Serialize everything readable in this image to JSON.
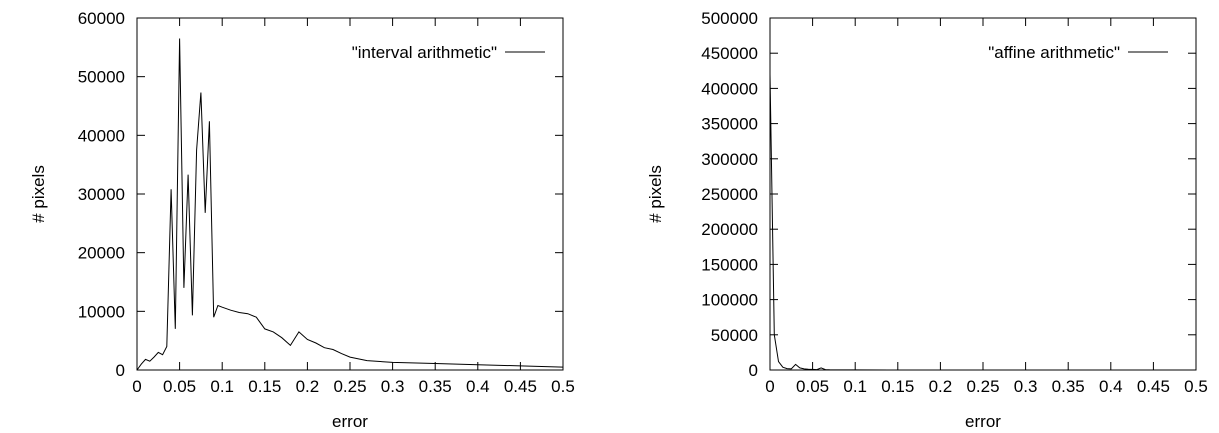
{
  "chart_data": [
    {
      "type": "line",
      "xlabel": "error",
      "ylabel": "# pixels",
      "xlim": [
        0,
        0.5
      ],
      "ylim": [
        0,
        60000
      ],
      "x_ticks": [
        "0",
        "0.05",
        "0.1",
        "0.15",
        "0.2",
        "0.25",
        "0.3",
        "0.35",
        "0.4",
        "0.45",
        "0.5"
      ],
      "y_ticks": [
        "0",
        "10000",
        "20000",
        "30000",
        "40000",
        "50000",
        "60000"
      ],
      "grid": false,
      "legend_position": "top-right",
      "series": [
        {
          "name": "\"interval arithmetic\"",
          "x": [
            0,
            0.005,
            0.01,
            0.015,
            0.02,
            0.025,
            0.03,
            0.035,
            0.04,
            0.045,
            0.05,
            0.055,
            0.06,
            0.065,
            0.07,
            0.075,
            0.08,
            0.085,
            0.09,
            0.095,
            0.1,
            0.11,
            0.12,
            0.13,
            0.14,
            0.15,
            0.16,
            0.17,
            0.18,
            0.19,
            0.2,
            0.21,
            0.22,
            0.23,
            0.24,
            0.25,
            0.27,
            0.3,
            0.35,
            0.4,
            0.45,
            0.5
          ],
          "y": [
            0,
            1000,
            1800,
            1500,
            2200,
            3000,
            2600,
            4000,
            30800,
            7000,
            56500,
            14000,
            33300,
            9300,
            37500,
            47300,
            26800,
            42400,
            9000,
            11000,
            10700,
            10200,
            9800,
            9600,
            9000,
            7000,
            6500,
            5500,
            4200,
            6500,
            5200,
            4600,
            3800,
            3500,
            2800,
            2200,
            1600,
            1300,
            1100,
            900,
            700,
            500
          ]
        }
      ]
    },
    {
      "type": "line",
      "xlabel": "error",
      "ylabel": "# pixels",
      "xlim": [
        0,
        0.5
      ],
      "ylim": [
        0,
        500000
      ],
      "x_ticks": [
        "0",
        "0.05",
        "0.1",
        "0.15",
        "0.2",
        "0.25",
        "0.3",
        "0.35",
        "0.4",
        "0.45",
        "0.5"
      ],
      "y_ticks": [
        "0",
        "50000",
        "100000",
        "150000",
        "200000",
        "250000",
        "300000",
        "350000",
        "400000",
        "450000",
        "500000"
      ],
      "grid": false,
      "legend_position": "top-right",
      "series": [
        {
          "name": "\"affine arithmetic\"",
          "x": [
            0,
            0.005,
            0.01,
            0.015,
            0.02,
            0.025,
            0.03,
            0.035,
            0.04,
            0.045,
            0.05,
            0.055,
            0.06,
            0.065,
            0.07,
            0.08,
            0.1,
            0.15,
            0.2,
            0.3,
            0.4,
            0.5
          ],
          "y": [
            420000,
            50000,
            12000,
            4000,
            2000,
            1500,
            8000,
            3000,
            1500,
            1000,
            800,
            600,
            3000,
            500,
            300,
            200,
            100,
            50,
            20,
            10,
            5,
            0
          ]
        }
      ]
    }
  ]
}
